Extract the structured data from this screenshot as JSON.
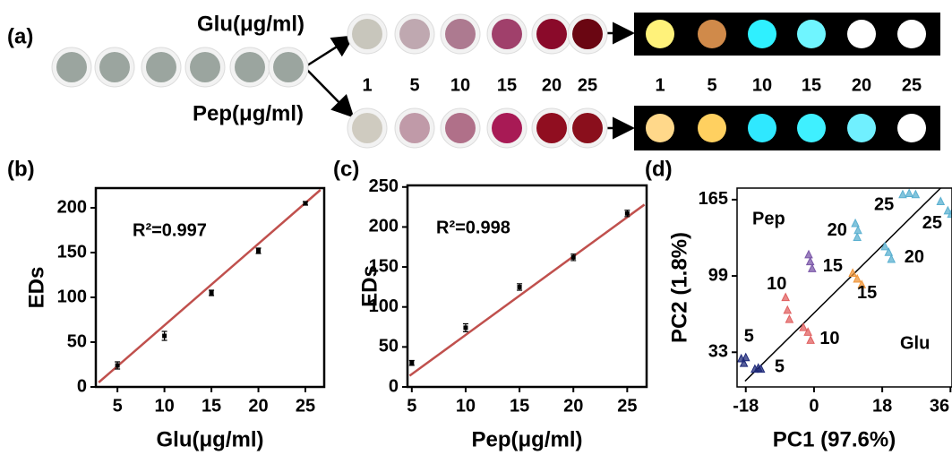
{
  "panel_a": {
    "label": "(a)",
    "glu_label": "Glu(μg/ml)",
    "pep_label": "Pep(μg/ml)",
    "initial_wells": [
      "#9ba59f",
      "#9ba59f",
      "#9ba59f",
      "#9ba59f",
      "#9ba59f",
      "#9ba59f"
    ],
    "glu_wells": [
      "#c8c6bc",
      "#bfa8b0",
      "#ad7a90",
      "#a0406b",
      "#8a0a2a",
      "#6a0612"
    ],
    "pep_wells": [
      "#cfcbc0",
      "#c09aa8",
      "#b07089",
      "#a81a55",
      "#900e20",
      "#8a0f1c"
    ],
    "concentrations": [
      1,
      5,
      10,
      15,
      20,
      25
    ],
    "fluorescence_concentrations": [
      1,
      5,
      10,
      15,
      20,
      25
    ],
    "glu_fluorescence": [
      "#fff27a",
      "#d08a4a",
      "#2ff0ff",
      "#6ff5ff",
      "#ffffff",
      "#ffffff"
    ],
    "pep_fluorescence": [
      "#ffd88a",
      "#ffd060",
      "#2fe8ff",
      "#3ff0ff",
      "#70f0ff",
      "#ffffff"
    ]
  },
  "chart_data": [
    {
      "type": "scatter",
      "panel_label": "(b)",
      "annotation": "R²=0.997",
      "xlabel": "Glu(μg/ml)",
      "ylabel": "EDs",
      "xlim": [
        2.7,
        27
      ],
      "ylim": [
        0,
        222
      ],
      "xticks": [
        5,
        10,
        15,
        20,
        25
      ],
      "yticks": [
        0,
        50,
        100,
        150,
        200
      ],
      "x": [
        5,
        10,
        15,
        20,
        25
      ],
      "values": [
        24,
        57,
        105,
        152,
        205
      ],
      "errors": [
        4,
        5,
        3,
        3,
        2
      ],
      "color": "#000000",
      "fit": {
        "x": [
          3.0,
          26.6
        ],
        "values": [
          5,
          220
        ],
        "color": "#c0504d"
      }
    },
    {
      "type": "scatter",
      "panel_label": "(c)",
      "annotation": "R²=0.998",
      "xlabel": "Pep(μg/ml)",
      "ylabel": "EDs",
      "xlim": [
        4.6,
        26.8
      ],
      "ylim": [
        0,
        252
      ],
      "xticks": [
        5,
        10,
        15,
        20,
        25
      ],
      "yticks": [
        0,
        50,
        100,
        150,
        200,
        250
      ],
      "x": [
        5,
        10,
        15,
        20,
        25
      ],
      "values": [
        30,
        74,
        125,
        162,
        217
      ],
      "errors": [
        3,
        5,
        4,
        4,
        4
      ],
      "color": "#000000",
      "fit": {
        "x": [
          4.8,
          26.6
        ],
        "values": [
          14,
          228
        ],
        "color": "#c0504d"
      }
    },
    {
      "type": "pca",
      "panel_label": "(d)",
      "xlabel": "PC1 (97.6%)",
      "ylabel": "PC2 (1.8%)",
      "xlim": [
        -20.3,
        36.4
      ],
      "ylim": [
        3,
        175
      ],
      "xticks": [
        -18,
        0,
        18,
        36
      ],
      "yticks": [
        33,
        99,
        165
      ],
      "region_labels": [
        "Pep",
        "Glu"
      ],
      "divider": {
        "x": [
          -18.2,
          33.4
        ],
        "values": [
          8,
          175
        ],
        "color": "#000000"
      },
      "series": [
        {
          "label": "5",
          "color": "#1f2a7a",
          "x": [
            -19.2,
            -18.5,
            -18
          ],
          "values": [
            27,
            23,
            28
          ]
        },
        {
          "label": "5",
          "color": "#1f2a7a",
          "x": [
            -15.6,
            -14.7,
            -14
          ],
          "values": [
            18,
            19,
            18
          ]
        },
        {
          "label": "10",
          "color": "#e06060",
          "x": [
            -7.5,
            -7,
            -6.5
          ],
          "values": [
            80,
            69,
            61
          ]
        },
        {
          "label": "10",
          "color": "#e06060",
          "x": [
            -2.8,
            -1.6,
            -0.9
          ],
          "values": [
            54,
            50,
            43
          ]
        },
        {
          "label": "15",
          "color": "#7a56a8",
          "x": [
            -1.4,
            -1,
            -0.5
          ],
          "values": [
            117,
            111,
            105
          ]
        },
        {
          "label": "15",
          "color": "#f0963a",
          "x": [
            10.2,
            11.4,
            12.6
          ],
          "values": [
            101,
            96,
            91
          ]
        },
        {
          "label": "20",
          "color": "#5ab0d0",
          "x": [
            10.9,
            11.6,
            11.4
          ],
          "values": [
            144,
            138,
            132
          ]
        },
        {
          "label": "20",
          "color": "#5ab0d0",
          "x": [
            18.7,
            19.7,
            20.4
          ],
          "values": [
            124,
            119,
            113
          ]
        },
        {
          "label": "25",
          "color": "#5ab0d0",
          "x": [
            23.4,
            25.1,
            26.8
          ],
          "values": [
            169,
            170,
            169
          ]
        },
        {
          "label": "25",
          "color": "#5ab0d0",
          "x": [
            33.4,
            35.3,
            36.2
          ],
          "values": [
            163,
            155,
            152
          ]
        }
      ]
    }
  ]
}
